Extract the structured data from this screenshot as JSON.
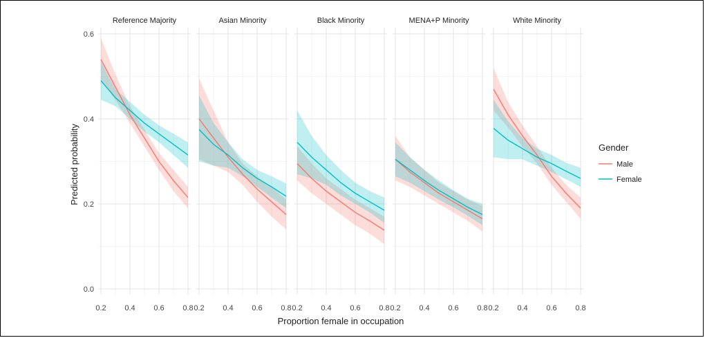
{
  "chart_data": {
    "type": "line",
    "xlabel": "Proportion female in occupation",
    "ylabel": "Predicted probability",
    "xlim": [
      0.2,
      0.8
    ],
    "ylim": [
      0.0,
      0.6
    ],
    "x_ticks": [
      0.2,
      0.4,
      0.6,
      0.8
    ],
    "x_tick_labels": [
      "0.2",
      "0.4",
      "0.6",
      "0.8"
    ],
    "y_ticks": [
      0.0,
      0.2,
      0.4,
      0.6
    ],
    "y_tick_labels": [
      "0.0",
      "0.2",
      "0.4",
      "0.6"
    ],
    "grid": true,
    "legend": {
      "title": "Gender",
      "placement": "right",
      "entries": [
        {
          "name": "Male",
          "color": "#F8766D"
        },
        {
          "name": "Female",
          "color": "#00BFC4"
        }
      ]
    },
    "x": [
      0.2,
      0.3,
      0.4,
      0.5,
      0.6,
      0.7,
      0.8
    ],
    "panels": [
      {
        "title": "Reference Majority",
        "series": [
          {
            "name": "Male",
            "color": "#F8766D",
            "values": [
              0.54,
              0.475,
              0.41,
              0.355,
              0.3,
              0.255,
              0.215
            ],
            "lower": [
              0.49,
              0.445,
              0.39,
              0.335,
              0.28,
              0.23,
              0.19
            ],
            "upper": [
              0.59,
              0.505,
              0.43,
              0.375,
              0.32,
              0.28,
              0.24
            ]
          },
          {
            "name": "Female",
            "color": "#00BFC4",
            "values": [
              0.49,
              0.45,
              0.42,
              0.39,
              0.365,
              0.34,
              0.315
            ],
            "lower": [
              0.445,
              0.43,
              0.4,
              0.37,
              0.345,
              0.315,
              0.285
            ],
            "upper": [
              0.535,
              0.47,
              0.44,
              0.41,
              0.385,
              0.365,
              0.345
            ]
          }
        ]
      },
      {
        "title": "Asian Minority",
        "series": [
          {
            "name": "Male",
            "color": "#F8766D",
            "values": [
              0.4,
              0.355,
              0.31,
              0.27,
              0.235,
              0.205,
              0.175
            ],
            "lower": [
              0.305,
              0.29,
              0.275,
              0.245,
              0.205,
              0.17,
              0.14
            ],
            "upper": [
              0.495,
              0.42,
              0.345,
              0.295,
              0.265,
              0.24,
              0.21
            ]
          },
          {
            "name": "Female",
            "color": "#00BFC4",
            "values": [
              0.375,
              0.34,
              0.315,
              0.285,
              0.26,
              0.24,
              0.218
            ],
            "lower": [
              0.3,
              0.29,
              0.285,
              0.265,
              0.24,
              0.215,
              0.19
            ],
            "upper": [
              0.455,
              0.39,
              0.345,
              0.305,
              0.28,
              0.265,
              0.248
            ]
          }
        ]
      },
      {
        "title": "Black Minority",
        "series": [
          {
            "name": "Male",
            "color": "#F8766D",
            "values": [
              0.295,
              0.26,
              0.23,
              0.205,
              0.18,
              0.16,
              0.138
            ],
            "lower": [
              0.255,
              0.225,
              0.2,
              0.175,
              0.15,
              0.13,
              0.105
            ],
            "upper": [
              0.335,
              0.295,
              0.26,
              0.235,
              0.21,
              0.19,
              0.17
            ]
          },
          {
            "name": "Female",
            "color": "#00BFC4",
            "values": [
              0.345,
              0.31,
              0.28,
              0.25,
              0.225,
              0.205,
              0.185
            ],
            "lower": [
              0.27,
              0.26,
              0.245,
              0.22,
              0.2,
              0.18,
              0.155
            ],
            "upper": [
              0.42,
              0.36,
              0.315,
              0.28,
              0.25,
              0.23,
              0.215
            ]
          }
        ]
      },
      {
        "title": "MENA+P Minority",
        "series": [
          {
            "name": "Male",
            "color": "#F8766D",
            "values": [
              0.305,
              0.275,
              0.25,
              0.225,
              0.205,
              0.185,
              0.165
            ],
            "lower": [
              0.255,
              0.24,
              0.22,
              0.2,
              0.18,
              0.16,
              0.135
            ],
            "upper": [
              0.36,
              0.31,
              0.28,
              0.25,
              0.23,
              0.21,
              0.195
            ]
          },
          {
            "name": "Female",
            "color": "#00BFC4",
            "values": [
              0.305,
              0.28,
              0.255,
              0.232,
              0.212,
              0.192,
              0.175
            ],
            "lower": [
              0.265,
              0.25,
              0.23,
              0.21,
              0.192,
              0.172,
              0.15
            ],
            "upper": [
              0.345,
              0.31,
              0.28,
              0.255,
              0.232,
              0.212,
              0.2
            ]
          }
        ]
      },
      {
        "title": "White Minority",
        "series": [
          {
            "name": "Male",
            "color": "#F8766D",
            "values": [
              0.47,
              0.41,
              0.36,
              0.315,
              0.265,
              0.225,
              0.19
            ],
            "lower": [
              0.42,
              0.38,
              0.335,
              0.295,
              0.245,
              0.205,
              0.165
            ],
            "upper": [
              0.52,
              0.44,
              0.385,
              0.335,
              0.285,
              0.245,
              0.215
            ]
          },
          {
            "name": "Female",
            "color": "#00BFC4",
            "values": [
              0.378,
              0.35,
              0.33,
              0.31,
              0.295,
              0.277,
              0.26
            ],
            "lower": [
              0.31,
              0.305,
              0.305,
              0.29,
              0.275,
              0.258,
              0.24
            ],
            "upper": [
              0.445,
              0.395,
              0.355,
              0.33,
              0.315,
              0.297,
              0.285
            ]
          }
        ]
      }
    ]
  }
}
